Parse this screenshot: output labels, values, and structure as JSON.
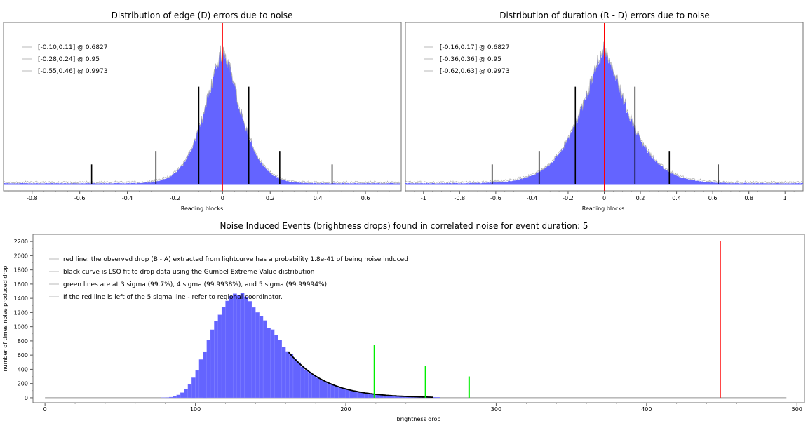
{
  "chart_data": [
    {
      "type": "bar",
      "title": "Distribution of edge (D) errors due to noise",
      "xlabel": "Reading blocks",
      "ylabel": "",
      "xlim": [
        -0.92,
        0.75
      ],
      "ylim": [
        0,
        1.08
      ],
      "x_ticks": [
        -0.8,
        -0.6,
        -0.4,
        -0.2,
        0,
        0.2,
        0.4,
        0.6
      ],
      "x_tick_labels": [
        "-0.8",
        "-0.6",
        "-0.4",
        "-0.2",
        "0",
        "0.2",
        "0.4",
        "0.6"
      ],
      "distribution": {
        "center": 0.0,
        "scale": 0.1,
        "peak": 0.88,
        "sharpness": 1.5
      },
      "legend": [
        "[-0.10,0.11] @ 0.6827",
        "[-0.28,0.24] @ 0.95",
        "[-0.55,0.46] @ 0.9973"
      ],
      "sigma_lines": [
        {
          "x": -0.1,
          "height": 0.65
        },
        {
          "x": 0.11,
          "height": 0.65
        },
        {
          "x": -0.28,
          "height": 0.22
        },
        {
          "x": 0.24,
          "height": 0.22
        },
        {
          "x": -0.55,
          "height": 0.13
        },
        {
          "x": 0.46,
          "height": 0.13
        }
      ],
      "observed_line": {
        "x": 0.0,
        "color": "#ff0000"
      },
      "colors": {
        "bars": "#6464ff",
        "sigma": "#000000"
      }
    },
    {
      "type": "bar",
      "title": "Distribution of duration (R - D) errors due to noise",
      "xlabel": "Reading blocks",
      "ylabel": "",
      "xlim": [
        -1.1,
        1.1
      ],
      "ylim": [
        0,
        1.08
      ],
      "x_ticks": [
        -1,
        -0.8,
        -0.6,
        -0.4,
        -0.2,
        0,
        0.2,
        0.4,
        0.6,
        0.8,
        1
      ],
      "x_tick_labels": [
        "-1",
        "-0.8",
        "-0.6",
        "-0.4",
        "-0.2",
        "0",
        "0.2",
        "0.4",
        "0.6",
        "0.8",
        "1"
      ],
      "distribution": {
        "center": 0.0,
        "scale": 0.17,
        "peak": 0.9,
        "sharpness": 1.35
      },
      "legend": [
        "[-0.16,0.17] @ 0.6827",
        "[-0.36,0.36] @ 0.95",
        "[-0.62,0.63] @ 0.9973"
      ],
      "sigma_lines": [
        {
          "x": -0.16,
          "height": 0.65
        },
        {
          "x": 0.17,
          "height": 0.65
        },
        {
          "x": -0.36,
          "height": 0.22
        },
        {
          "x": 0.36,
          "height": 0.22
        },
        {
          "x": -0.62,
          "height": 0.13
        },
        {
          "x": 0.63,
          "height": 0.13
        }
      ],
      "observed_line": {
        "x": 0.0,
        "color": "#ff0000"
      },
      "colors": {
        "bars": "#6464ff",
        "sigma": "#000000"
      }
    },
    {
      "type": "bar",
      "title": "Noise Induced Events (brightness drops) found in correlated noise for event duration: 5",
      "xlabel": "brightness drop",
      "ylabel": "number of times noise produced drop",
      "xlim": [
        -8,
        505
      ],
      "ylim": [
        -70,
        2300
      ],
      "x_ticks": [
        0,
        100,
        200,
        300,
        400,
        500
      ],
      "x_tick_labels": [
        "0",
        "100",
        "200",
        "300",
        "400",
        "500"
      ],
      "y_ticks": [
        0,
        200,
        400,
        600,
        800,
        1000,
        1200,
        1400,
        1600,
        1800,
        2000,
        2200
      ],
      "y_tick_labels": [
        "0",
        "200",
        "400",
        "600",
        "800",
        "1000",
        "1200",
        "1400",
        "1600",
        "1800",
        "2000",
        "2200"
      ],
      "histogram": {
        "mode": 128,
        "scale": 21,
        "peak": 1450,
        "bin_width": 2.5,
        "x_start": 40,
        "x_end": 262,
        "baseline_end": 493
      },
      "fit_curve": {
        "x_start": 162,
        "x_end": 258
      },
      "legend": [
        "red line: the observed drop (B - A) extracted from lightcurve has a probability 1.8e-41 of being noise induced",
        "black curve is LSQ fit to drop data using the Gumbel Extreme Value distribution",
        "green lines are at 3 sigma (99.7%), 4 sigma (99.9938%), and 5 sigma (99.99994%)",
        "If the red line is left of the 5 sigma line - refer to regional coordinator."
      ],
      "sigma_lines": [
        {
          "x": 219,
          "height": 740,
          "color": "#00ee00"
        },
        {
          "x": 253,
          "height": 450,
          "color": "#00ee00"
        },
        {
          "x": 282,
          "height": 300,
          "color": "#00ee00"
        }
      ],
      "observed_line": {
        "x": 449,
        "height": 2210,
        "color": "#ff0000"
      },
      "colors": {
        "bars": "#6464ff",
        "fit": "#000000"
      }
    }
  ]
}
